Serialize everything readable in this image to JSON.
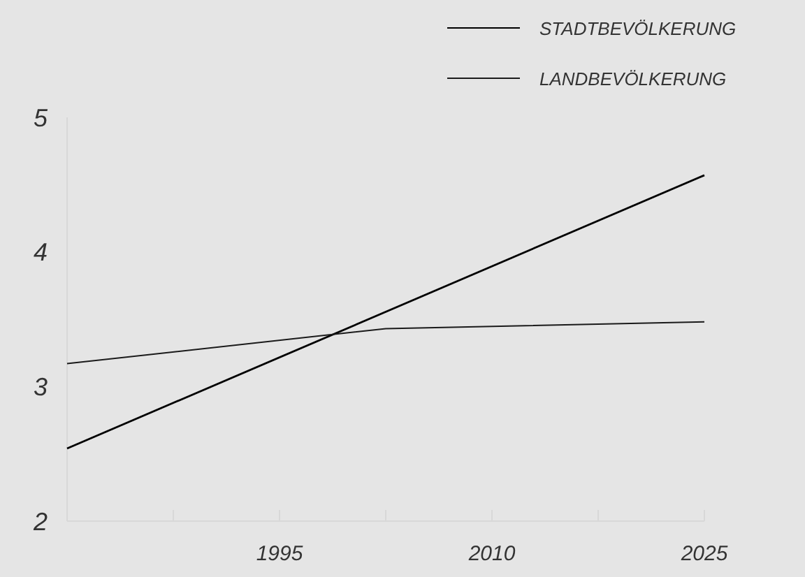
{
  "chart_data": {
    "type": "line",
    "xlim": [
      1980,
      2025
    ],
    "ylim": [
      2,
      5
    ],
    "yticks": [
      2,
      3,
      4,
      5
    ],
    "xticks": [
      {
        "value": 1987.5,
        "label": null
      },
      1995,
      {
        "value": 2002.5,
        "label": null
      },
      2010,
      {
        "value": 2017.5,
        "label": null
      },
      2025
    ],
    "legend": "top right",
    "grid": false,
    "line_style": "solid",
    "marker": "none",
    "series": [
      {
        "name": "STADTBEVÖLKERUNG",
        "color": "#000000",
        "x": [
          1980,
          2025
        ],
        "values": [
          2.54,
          4.57
        ]
      },
      {
        "name": "LANDBEVÖLKERUNG",
        "color": "#1a1a1a",
        "x": [
          1980,
          2002.5,
          2025
        ],
        "values": [
          3.17,
          3.43,
          3.48
        ]
      }
    ]
  }
}
